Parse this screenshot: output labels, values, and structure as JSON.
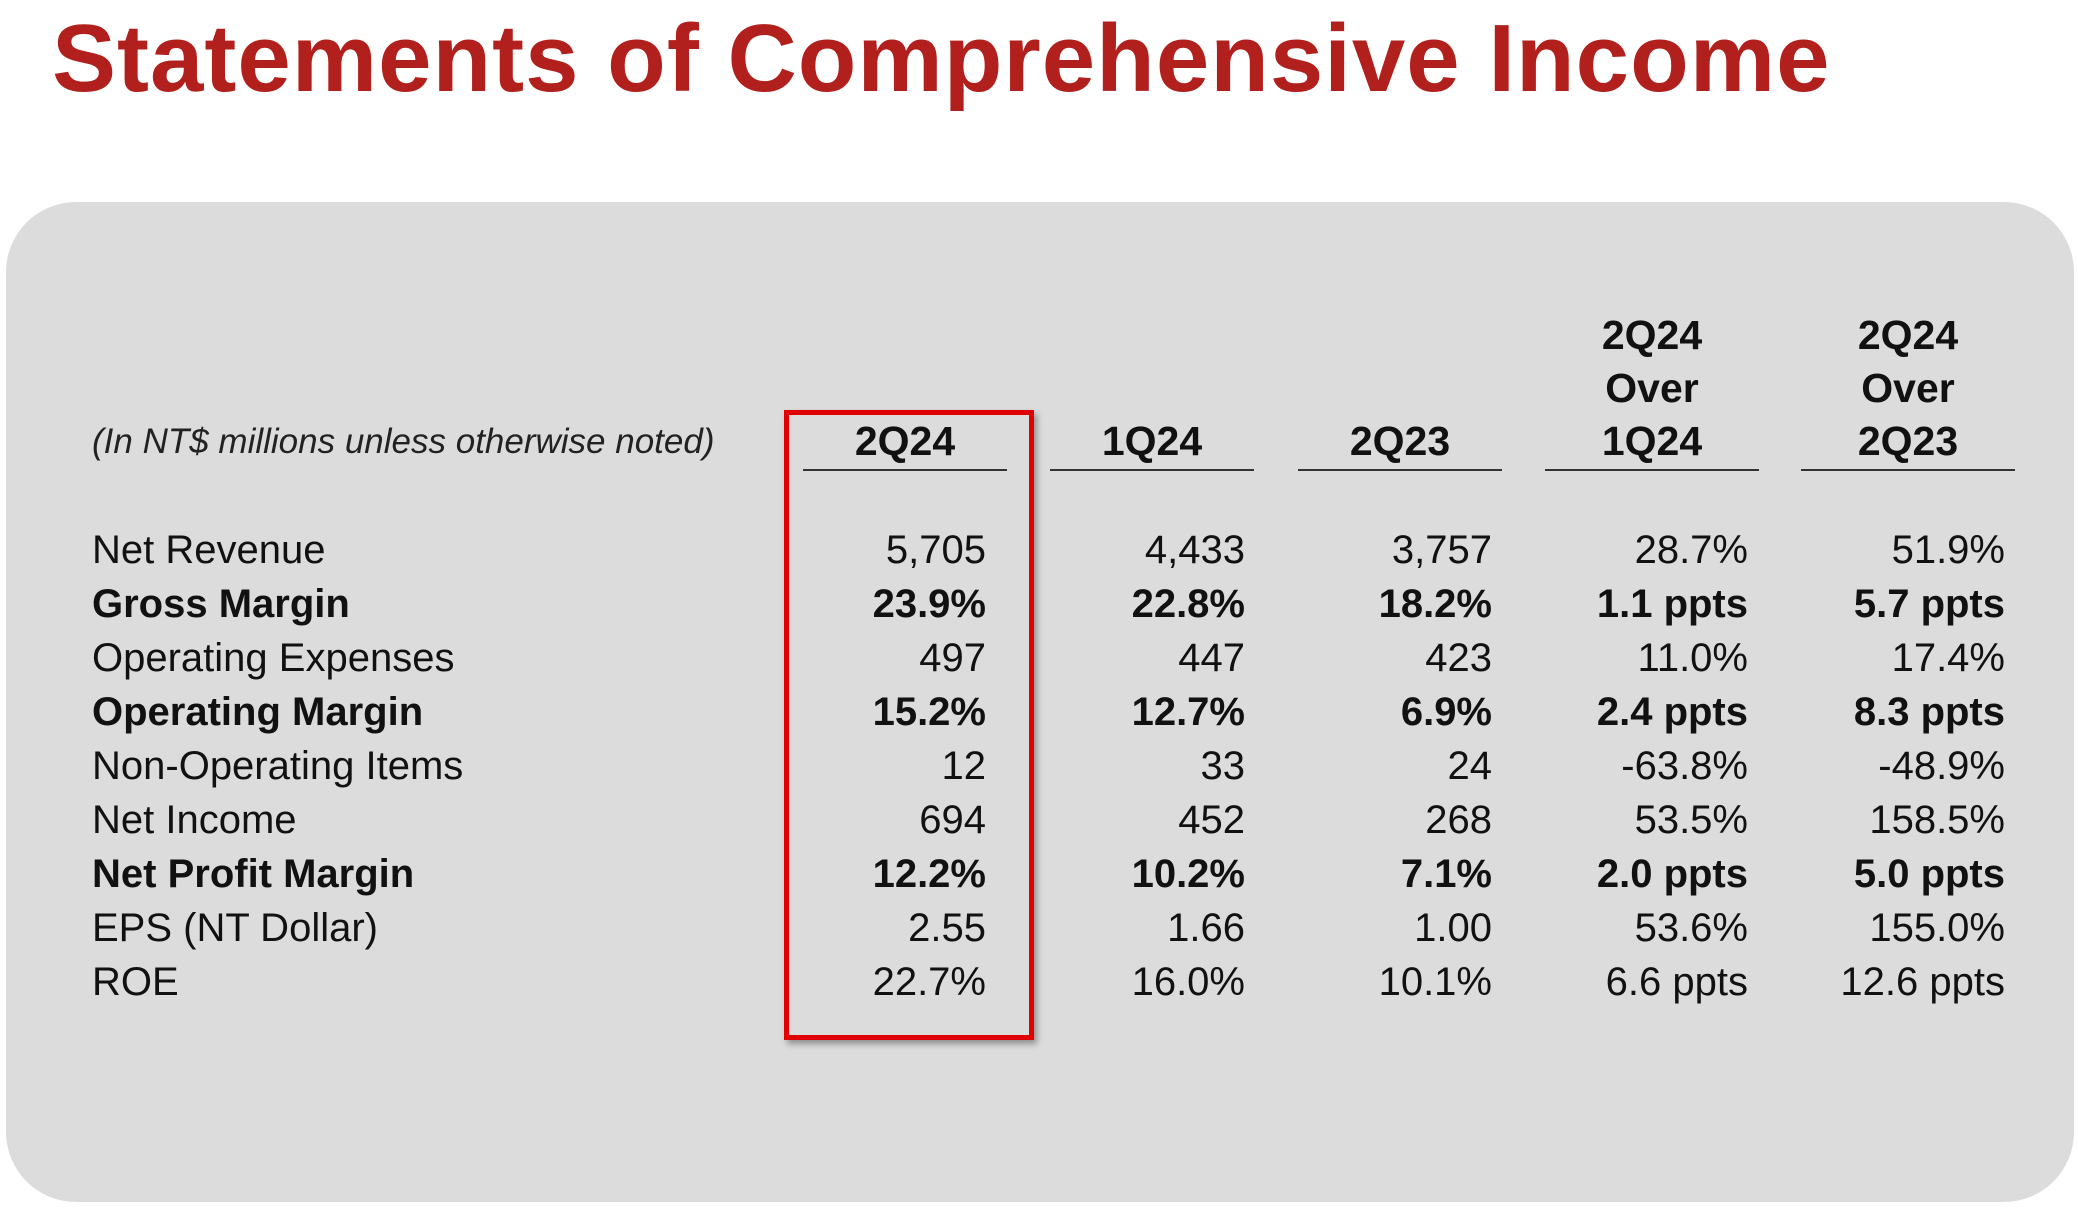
{
  "title": "Statements of Comprehensive Income",
  "note": "(In NT$ millions unless otherwise noted)",
  "colors": {
    "title": "#b1201c",
    "highlight_box": "#e00000",
    "panel": "#dcdcdc"
  },
  "columns": [
    {
      "lines": [
        "2Q24"
      ]
    },
    {
      "lines": [
        "1Q24"
      ]
    },
    {
      "lines": [
        "2Q23"
      ]
    },
    {
      "lines": [
        "2Q24",
        "Over",
        "1Q24"
      ]
    },
    {
      "lines": [
        "2Q24",
        "Over",
        "2Q23"
      ]
    }
  ],
  "highlighted_column": "2Q24",
  "rows": [
    {
      "label": "Net Revenue",
      "bold": false,
      "values": [
        "5,705",
        "4,433",
        "3,757",
        "28.7%",
        "51.9%"
      ]
    },
    {
      "label": "Gross Margin",
      "bold": true,
      "values": [
        "23.9%",
        "22.8%",
        "18.2%",
        "1.1 ppts",
        "5.7 ppts"
      ]
    },
    {
      "label": "Operating Expenses",
      "bold": false,
      "values": [
        "497",
        "447",
        "423",
        "11.0%",
        "17.4%"
      ]
    },
    {
      "label": "Operating Margin",
      "bold": true,
      "values": [
        "15.2%",
        "12.7%",
        "6.9%",
        "2.4 ppts",
        "8.3 ppts"
      ]
    },
    {
      "label": "Non-Operating Items",
      "bold": false,
      "values": [
        "12",
        "33",
        "24",
        "-63.8%",
        "-48.9%"
      ]
    },
    {
      "label": "Net Income",
      "bold": false,
      "values": [
        "694",
        "452",
        "268",
        "53.5%",
        "158.5%"
      ]
    },
    {
      "label": "Net Profit Margin",
      "bold": true,
      "values": [
        "12.2%",
        "10.2%",
        "7.1%",
        "2.0 ppts",
        "5.0 ppts"
      ]
    },
    {
      "label": "EPS (NT Dollar)",
      "bold": false,
      "values": [
        "2.55",
        "1.66",
        "1.00",
        "53.6%",
        "155.0%"
      ]
    },
    {
      "label": "ROE",
      "bold": false,
      "values": [
        "22.7%",
        "16.0%",
        "10.1%",
        "6.6 ppts",
        "12.6 ppts"
      ]
    }
  ]
}
